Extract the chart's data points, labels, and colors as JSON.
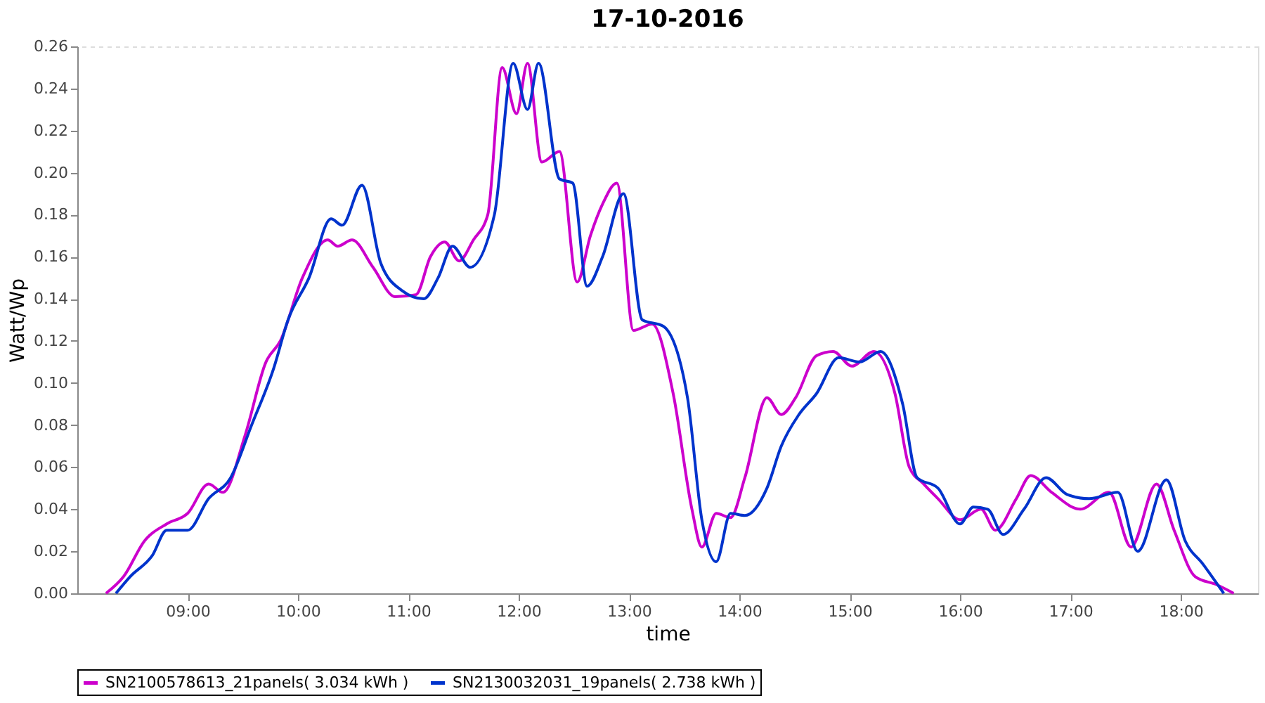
{
  "chart_data": {
    "type": "line",
    "title": "17-10-2016",
    "xlabel": "time",
    "ylabel": "Watt/Wp",
    "xlim": [
      8.0,
      18.7
    ],
    "ylim": [
      0,
      0.26
    ],
    "xticks": [
      {
        "value": 9,
        "label": "09:00"
      },
      {
        "value": 10,
        "label": "10:00"
      },
      {
        "value": 11,
        "label": "11:00"
      },
      {
        "value": 12,
        "label": "12:00"
      },
      {
        "value": 13,
        "label": "13:00"
      },
      {
        "value": 14,
        "label": "14:00"
      },
      {
        "value": 15,
        "label": "15:00"
      },
      {
        "value": 16,
        "label": "16:00"
      },
      {
        "value": 17,
        "label": "17:00"
      },
      {
        "value": 18,
        "label": "18:00"
      }
    ],
    "yticks": [
      {
        "value": 0,
        "label": "0.00"
      },
      {
        "value": 0.02,
        "label": "0.02"
      },
      {
        "value": 0.04,
        "label": "0.04"
      },
      {
        "value": 0.06,
        "label": "0.06"
      },
      {
        "value": 0.08,
        "label": "0.08"
      },
      {
        "value": 0.1,
        "label": "0.10"
      },
      {
        "value": 0.12,
        "label": "0.12"
      },
      {
        "value": 0.14,
        "label": "0.14"
      },
      {
        "value": 0.16,
        "label": "0.16"
      },
      {
        "value": 0.18,
        "label": "0.18"
      },
      {
        "value": 0.2,
        "label": "0.20"
      },
      {
        "value": 0.22,
        "label": "0.22"
      },
      {
        "value": 0.24,
        "label": "0.24"
      },
      {
        "value": 0.26,
        "label": "0.26"
      }
    ],
    "grid": true,
    "legend": "bottom",
    "marker": "none",
    "line_style": "solid",
    "series": [
      {
        "name": "SN2100578613_21panels( 3.034 kWh )",
        "color": "#cc00cc",
        "x": [
          8.26,
          8.42,
          8.61,
          8.81,
          9.0,
          9.19,
          9.32,
          9.52,
          9.71,
          9.84,
          10.04,
          10.27,
          10.36,
          10.49,
          10.68,
          10.88,
          11.07,
          11.2,
          11.33,
          11.46,
          11.59,
          11.72,
          11.85,
          11.98,
          12.08,
          12.21,
          12.37,
          12.53,
          12.65,
          12.76,
          12.89,
          13.04,
          13.21,
          13.4,
          13.57,
          13.66,
          13.79,
          13.92,
          14.05,
          14.25,
          14.38,
          14.51,
          14.7,
          14.85,
          15.02,
          15.22,
          15.41,
          15.54,
          15.67,
          15.8,
          16.0,
          16.19,
          16.32,
          16.51,
          16.64,
          16.83,
          17.09,
          17.35,
          17.55,
          17.78,
          17.94,
          18.13,
          18.33,
          18.48
        ],
        "values": [
          0.0,
          0.008,
          0.025,
          0.033,
          0.038,
          0.052,
          0.048,
          0.075,
          0.11,
          0.12,
          0.15,
          0.168,
          0.165,
          0.168,
          0.155,
          0.141,
          0.142,
          0.16,
          0.167,
          0.158,
          0.168,
          0.18,
          0.25,
          0.228,
          0.252,
          0.205,
          0.21,
          0.148,
          0.17,
          0.185,
          0.195,
          0.125,
          0.128,
          0.095,
          0.04,
          0.022,
          0.038,
          0.036,
          0.055,
          0.093,
          0.085,
          0.093,
          0.113,
          0.115,
          0.108,
          0.115,
          0.095,
          0.06,
          0.052,
          0.045,
          0.035,
          0.04,
          0.03,
          0.045,
          0.056,
          0.048,
          0.04,
          0.048,
          0.022,
          0.052,
          0.03,
          0.008,
          0.004,
          0.0
        ]
      },
      {
        "name": "SN2130032031_19panels( 2.738 kWh )",
        "color": "#0033cc",
        "x": [
          8.35,
          8.48,
          8.68,
          8.81,
          9.0,
          9.19,
          9.39,
          9.58,
          9.78,
          9.91,
          10.1,
          10.3,
          10.4,
          10.58,
          10.75,
          10.94,
          11.14,
          11.27,
          11.4,
          11.56,
          11.78,
          11.95,
          12.08,
          12.18,
          12.37,
          12.49,
          12.62,
          12.76,
          12.95,
          13.12,
          13.31,
          13.53,
          13.66,
          13.79,
          13.92,
          14.05,
          14.25,
          14.38,
          14.54,
          14.7,
          14.9,
          15.09,
          15.28,
          15.48,
          15.61,
          15.8,
          16.0,
          16.12,
          16.25,
          16.39,
          16.58,
          16.78,
          16.97,
          17.17,
          17.43,
          17.61,
          17.87,
          18.04,
          18.2,
          18.39
        ],
        "values": [
          0.0,
          0.008,
          0.018,
          0.03,
          0.03,
          0.045,
          0.055,
          0.08,
          0.107,
          0.13,
          0.15,
          0.178,
          0.175,
          0.194,
          0.157,
          0.144,
          0.14,
          0.15,
          0.165,
          0.155,
          0.18,
          0.252,
          0.23,
          0.252,
          0.197,
          0.195,
          0.146,
          0.16,
          0.19,
          0.13,
          0.127,
          0.093,
          0.035,
          0.015,
          0.038,
          0.037,
          0.05,
          0.07,
          0.085,
          0.095,
          0.112,
          0.11,
          0.115,
          0.09,
          0.055,
          0.05,
          0.033,
          0.041,
          0.04,
          0.028,
          0.04,
          0.055,
          0.047,
          0.045,
          0.048,
          0.02,
          0.054,
          0.025,
          0.014,
          0.0
        ]
      }
    ]
  }
}
